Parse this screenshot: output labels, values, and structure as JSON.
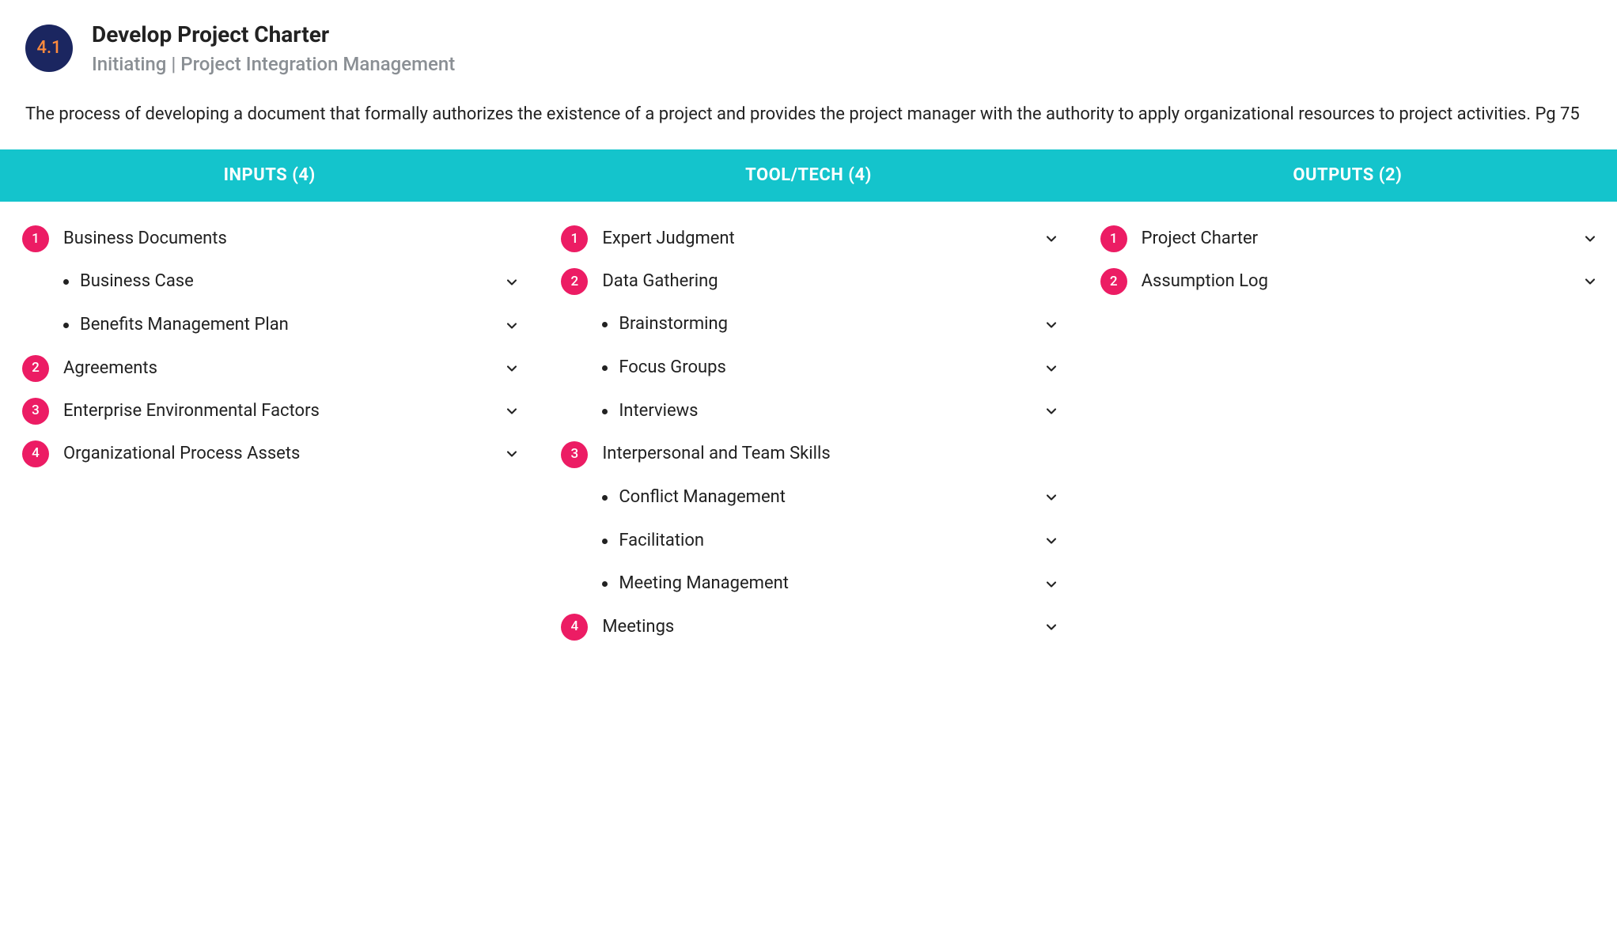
{
  "colors": {
    "process_badge_bg": "#1b2660",
    "process_badge_text": "#ff8b3d",
    "subtitle_text": "#8a8f94",
    "header_bar_bg": "#14c4cc",
    "header_bar_text": "#ffffff",
    "num_badge_bg": "#ec1c64",
    "chevron": "#222222"
  },
  "header": {
    "number": "4.1",
    "title": "Develop Project Charter",
    "subtitle": "Initiating | Project Integration Management"
  },
  "description": "The process of developing a document that formally authorizes the existence of a project and provides the project manager with the authority to apply organizational resources to project activities. Pg 75",
  "columns": [
    {
      "heading": "INPUTS (4)",
      "items": [
        {
          "num": "1",
          "label": "Business Documents",
          "chevron": false,
          "subs": [
            {
              "label": "Business Case",
              "chevron": true
            },
            {
              "label": "Benefits Management Plan",
              "chevron": true
            }
          ]
        },
        {
          "num": "2",
          "label": "Agreements",
          "chevron": true,
          "subs": []
        },
        {
          "num": "3",
          "label": "Enterprise Environmental Factors",
          "chevron": true,
          "subs": []
        },
        {
          "num": "4",
          "label": "Organizational Process Assets",
          "chevron": true,
          "subs": []
        }
      ]
    },
    {
      "heading": "TOOL/TECH (4)",
      "items": [
        {
          "num": "1",
          "label": "Expert Judgment",
          "chevron": true,
          "subs": []
        },
        {
          "num": "2",
          "label": "Data Gathering",
          "chevron": false,
          "subs": [
            {
              "label": "Brainstorming",
              "chevron": true
            },
            {
              "label": "Focus Groups",
              "chevron": true
            },
            {
              "label": "Interviews",
              "chevron": true
            }
          ]
        },
        {
          "num": "3",
          "label": "Interpersonal and Team Skills",
          "chevron": false,
          "subs": [
            {
              "label": "Conflict Management",
              "chevron": true
            },
            {
              "label": "Facilitation",
              "chevron": true
            },
            {
              "label": "Meeting Management",
              "chevron": true
            }
          ]
        },
        {
          "num": "4",
          "label": "Meetings",
          "chevron": true,
          "subs": []
        }
      ]
    },
    {
      "heading": "OUTPUTS (2)",
      "items": [
        {
          "num": "1",
          "label": "Project Charter",
          "chevron": true,
          "subs": []
        },
        {
          "num": "2",
          "label": "Assumption Log",
          "chevron": true,
          "subs": []
        }
      ]
    }
  ]
}
